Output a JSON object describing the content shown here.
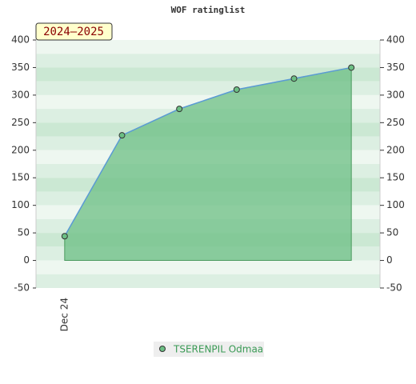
{
  "chart_data": {
    "type": "area",
    "title": "WOF ratinglist",
    "badge": "2024–2025",
    "categories": [
      "Dec 24",
      null,
      null,
      null,
      null,
      null
    ],
    "series": [
      {
        "name": "TSERENPIL Odmaa",
        "color": "#6cbf84",
        "line_color": "#5b9bd5",
        "values": [
          44,
          227,
          275,
          310,
          330,
          350
        ]
      }
    ],
    "ylim": [
      -50,
      400
    ],
    "yticks": [
      -50,
      0,
      50,
      100,
      150,
      200,
      250,
      300,
      350,
      400
    ],
    "y2lim": [
      -50,
      400
    ],
    "y2ticks": [
      -50,
      0,
      50,
      100,
      150,
      200,
      250,
      300,
      350,
      400
    ]
  }
}
